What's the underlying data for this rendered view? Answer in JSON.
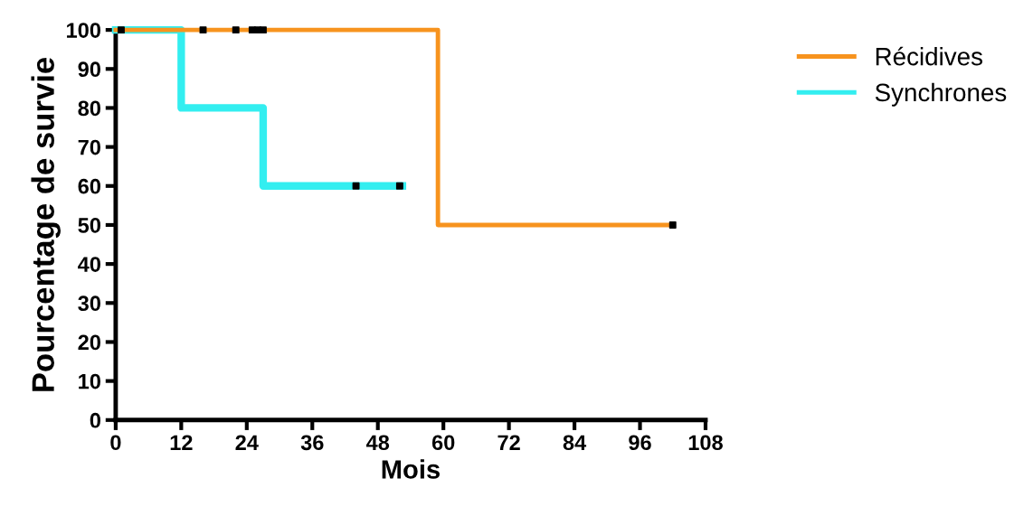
{
  "chart_data": {
    "type": "step",
    "xlabel": "Mois",
    "ylabel": "Pourcentage de survie",
    "xlim": [
      0,
      108
    ],
    "xticks": [
      0,
      12,
      24,
      36,
      48,
      60,
      72,
      84,
      96,
      108
    ],
    "ylim": [
      0,
      100
    ],
    "yticks": [
      0,
      10,
      20,
      30,
      40,
      50,
      60,
      70,
      80,
      90,
      100
    ],
    "grid": false,
    "legend": "right",
    "line_style": "solid",
    "series": [
      {
        "name": "Récidives",
        "color": "#f7931e",
        "x": [
          0,
          59,
          102
        ],
        "values": [
          100,
          50,
          50
        ]
      },
      {
        "name": "Synchrones",
        "color": "#33eef0",
        "x": [
          0,
          12,
          27,
          52.5
        ],
        "values": [
          100,
          80,
          60,
          60
        ]
      },
      {
        "type": "scatter",
        "color": "#000000",
        "marker": "square",
        "x": [
          1,
          16,
          22,
          25,
          26,
          27,
          102
        ],
        "values": [
          100,
          100,
          100,
          100,
          100,
          100,
          50
        ]
      },
      {
        "type": "scatter",
        "color": "#000000",
        "marker": "square",
        "x": [
          44,
          52
        ],
        "values": [
          60,
          60
        ]
      }
    ]
  }
}
